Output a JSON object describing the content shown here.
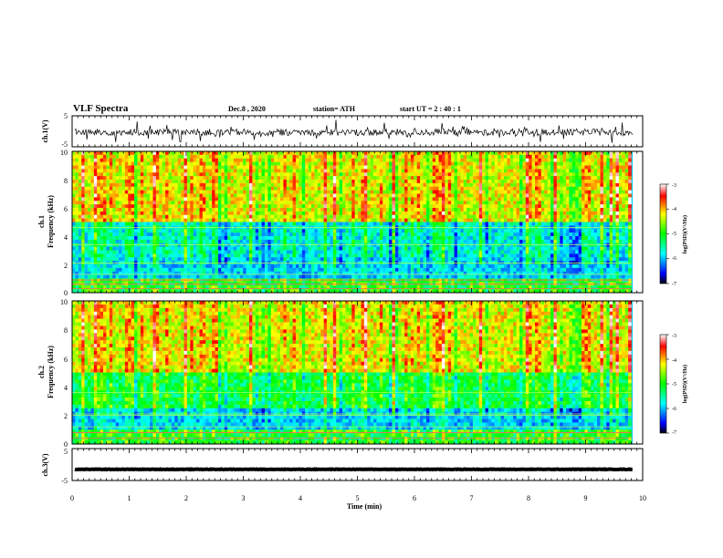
{
  "header": {
    "title": "VLF Spectra",
    "date": "Dec.8 , 2020",
    "station": "station= ATH",
    "start": "start UT = 2 : 40 : 1"
  },
  "chart_data": [
    {
      "type": "line",
      "panel": "ch1-voltage",
      "ylabel": "ch.1(V)",
      "ylim": [
        -5,
        5
      ],
      "ytick_labels": [
        "5",
        "-5"
      ],
      "xlim": [
        0,
        10
      ],
      "baseline": -0.3,
      "color": "#000000"
    },
    {
      "type": "heatmap",
      "panel": "ch1-spectrogram",
      "ylabel_top": "ch.1",
      "ylabel": "Frequency (kHz)",
      "ylim": [
        0,
        10
      ],
      "ytick_labels": [
        "0",
        "2",
        "4",
        "6",
        "8",
        "10"
      ],
      "xlim": [
        0,
        10
      ],
      "data_end_min": 9.8,
      "colorbar": {
        "label": "log(PSD)(V²/Hz)",
        "range": [
          -7,
          -3
        ],
        "tick_labels": [
          "-3",
          "-4",
          "-5",
          "-6",
          "-7"
        ]
      }
    },
    {
      "type": "heatmap",
      "panel": "ch2-spectrogram",
      "ylabel_top": "ch.2",
      "ylabel": "Frequency (kHz)",
      "ylim": [
        0,
        10
      ],
      "ytick_labels": [
        "0",
        "2",
        "4",
        "6",
        "8",
        "10"
      ],
      "xlim": [
        0,
        10
      ],
      "data_end_min": 9.8,
      "colorbar": {
        "label": "log(PSD)(V²/Hz)",
        "range": [
          -7,
          -3
        ],
        "tick_labels": [
          "-3",
          "-4",
          "-5",
          "-6",
          "-7"
        ]
      }
    },
    {
      "type": "line",
      "panel": "ch3-voltage",
      "ylabel": "ch.3(V)",
      "ylim": [
        -5,
        5
      ],
      "ytick_labels": [
        "5",
        "-5"
      ],
      "xlim": [
        0,
        10
      ],
      "xlabel": "Time (min)",
      "xtick_labels": [
        "0",
        "1",
        "2",
        "3",
        "4",
        "5",
        "6",
        "7",
        "8",
        "9",
        "10"
      ],
      "baseline": -1.5,
      "color": "#000000"
    }
  ]
}
